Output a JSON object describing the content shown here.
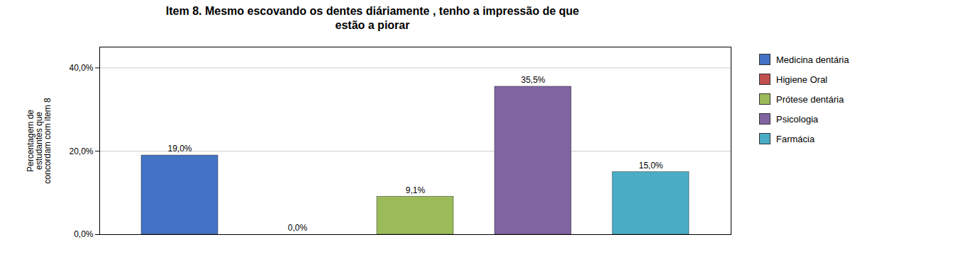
{
  "chart_data": {
    "type": "bar",
    "title": "Item 8. Mesmo escovando os dentes diáriamente , tenho a impressão de que\nestão a piorar",
    "ylabel": "Percentagem de\nestudantes que\nconcordam com item 8",
    "categories": [
      "Medicina dentária",
      "Higiene Oral",
      "Prótese dentária",
      "Psicologia",
      "Farmácia"
    ],
    "values": [
      19.0,
      0.0,
      9.1,
      35.5,
      15.0
    ],
    "value_labels": [
      "19,0%",
      "0,0%",
      "9,1%",
      "35,5%",
      "15,0%"
    ],
    "colors": [
      "#4472C4",
      "#C0504D",
      "#9BBB59",
      "#8064A2",
      "#4BACC6"
    ],
    "ylim": [
      0,
      45
    ],
    "yticks": [
      {
        "value": 0,
        "label": "0,0%"
      },
      {
        "value": 20,
        "label": "20,0%"
      },
      {
        "value": 40,
        "label": "40,0%"
      }
    ],
    "grid": true,
    "legend": "right",
    "data_labels": true,
    "tick_labels": "y"
  }
}
